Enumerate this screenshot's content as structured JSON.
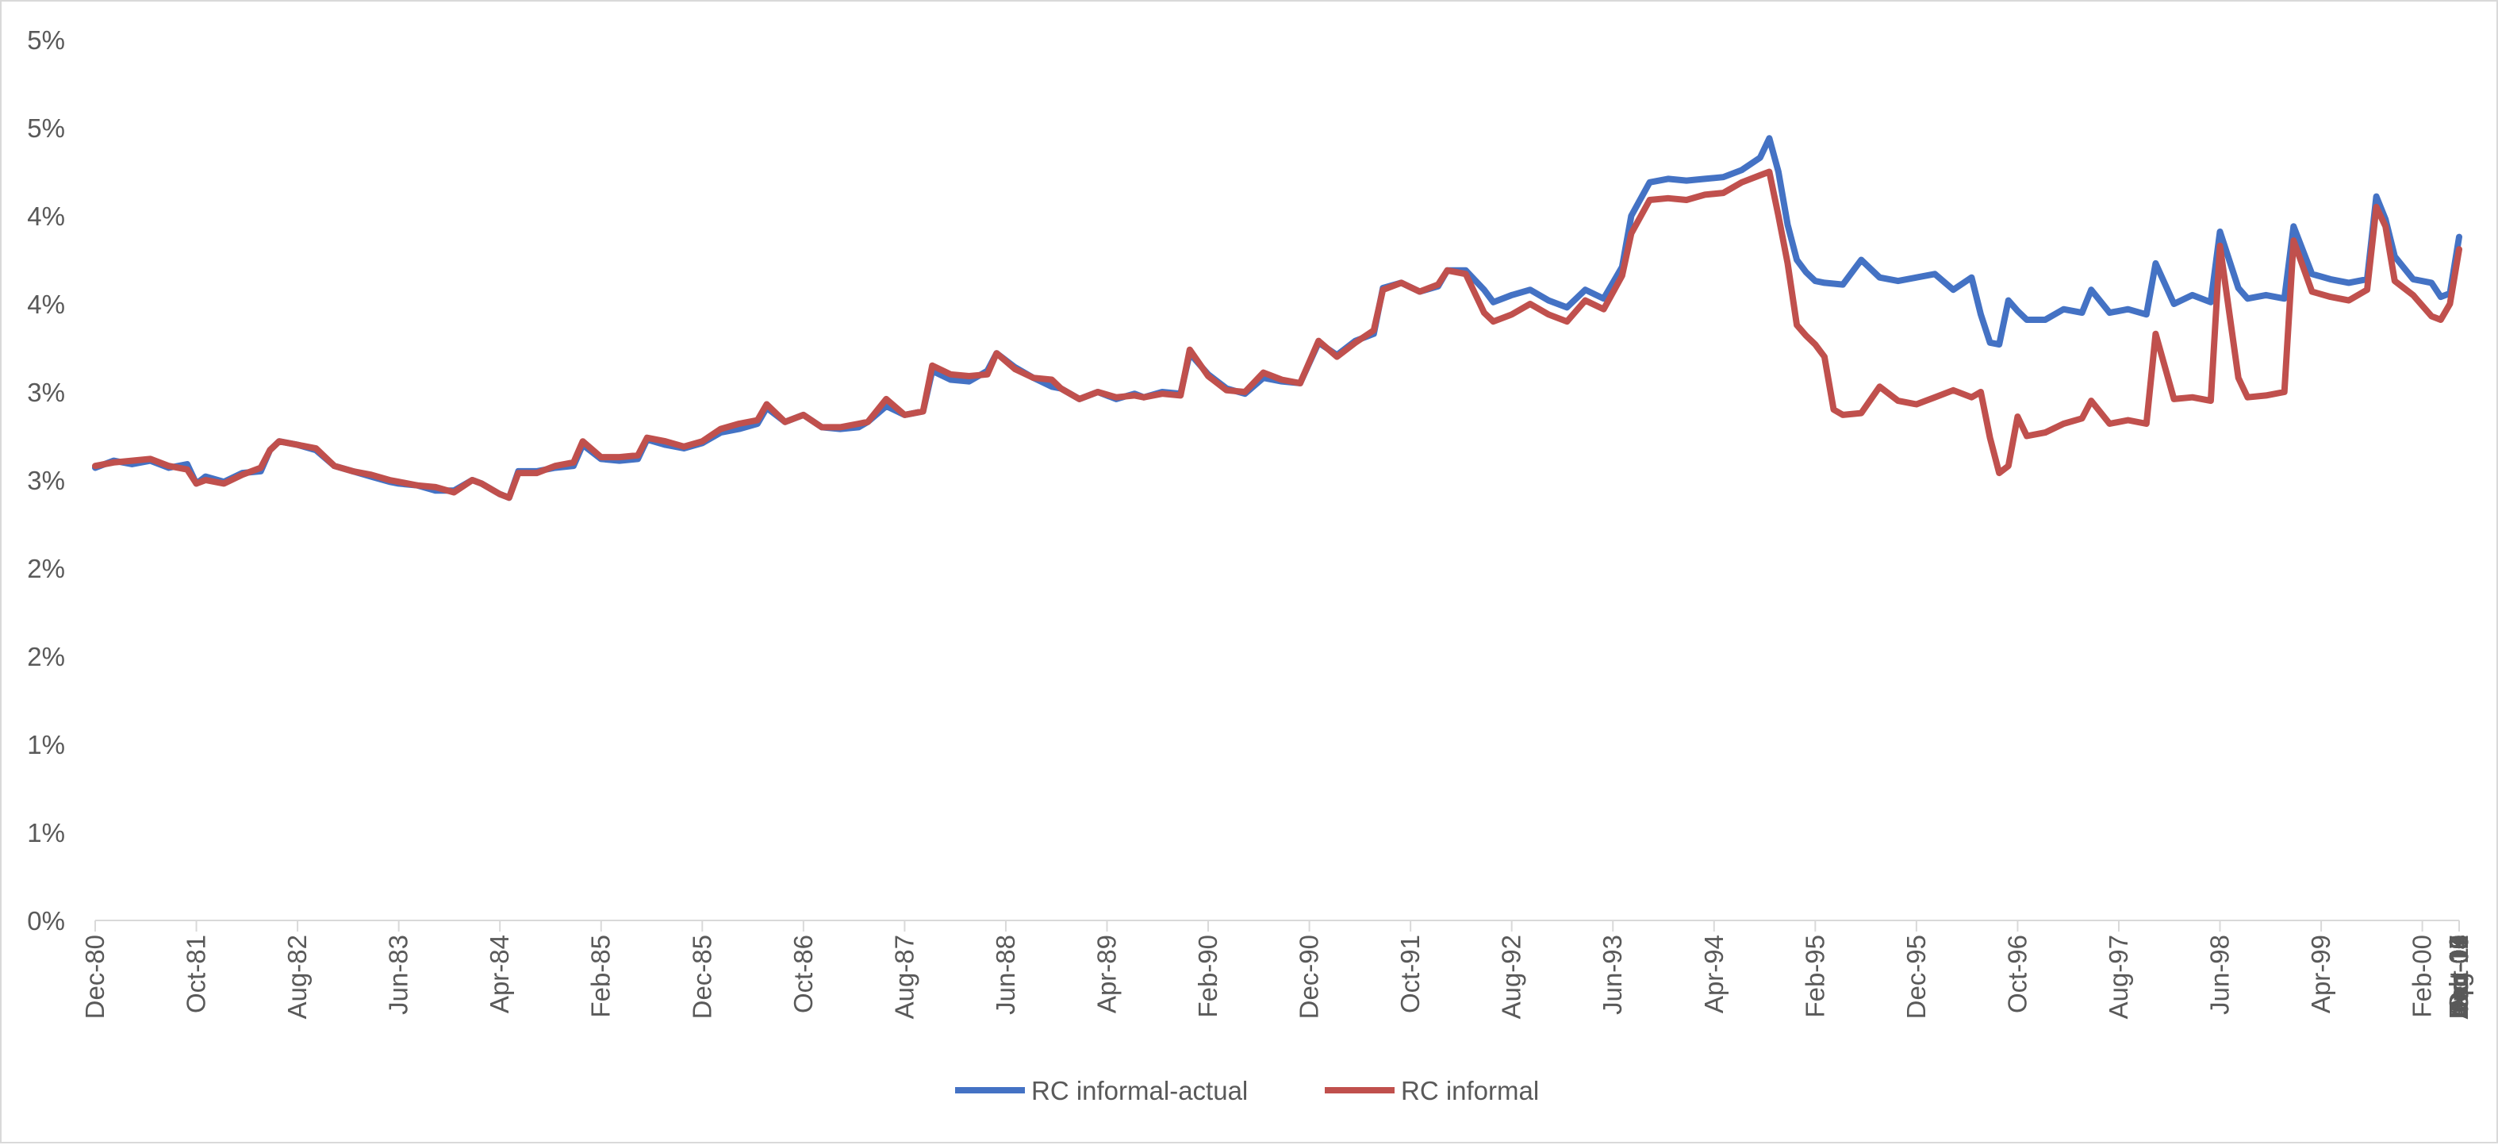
{
  "chart_data": {
    "type": "line",
    "title": "",
    "xlabel": "",
    "ylabel": "",
    "ylim": [
      0,
      5
    ],
    "y_tick_labels": [
      "0%",
      "1%",
      "1%",
      "2%",
      "2%",
      "3%",
      "3%",
      "4%",
      "4%",
      "5%",
      "5%"
    ],
    "x_tick_labels": [
      "Dec-80",
      "Oct-81",
      "Aug-82",
      "Jun-83",
      "Apr-84",
      "Feb-85",
      "Dec-85",
      "Oct-86",
      "Aug-87",
      "Jun-88",
      "Apr-89",
      "Feb-90",
      "Dec-90",
      "Oct-91",
      "Aug-92",
      "Jun-93",
      "Apr-94",
      "Feb-95",
      "Dec-95",
      "Oct-96",
      "Aug-97",
      "Jun-98",
      "Apr-99",
      "Feb-00",
      "Dec-00",
      "Oct-01",
      "Aug-02",
      "Jun-03",
      "Apr-04",
      "Feb-05",
      "Dec-05",
      "Oct-06",
      "Aug-07",
      "Jun-08",
      "Apr-09",
      "Feb-10",
      "Dec-10",
      "Oct-11",
      "Aug-12",
      "Jun-13",
      "Apr-14",
      "Feb-15",
      "Dec-15"
    ],
    "x_start": "Dec-80",
    "x_end": "Dec-15",
    "grid": false,
    "legend_position": "bottom",
    "series": [
      {
        "name": "RC informal-actual",
        "color": "#4472C4",
        "points": [
          [
            0,
            2.57
          ],
          [
            4,
            2.61
          ],
          [
            8,
            2.59
          ],
          [
            12,
            2.61
          ],
          [
            16,
            2.57
          ],
          [
            20,
            2.59
          ],
          [
            22,
            2.48
          ],
          [
            24,
            2.52
          ],
          [
            28,
            2.49
          ],
          [
            32,
            2.54
          ],
          [
            36,
            2.55
          ],
          [
            38,
            2.67
          ],
          [
            40,
            2.72
          ],
          [
            44,
            2.7
          ],
          [
            48,
            2.67
          ],
          [
            52,
            2.58
          ],
          [
            56,
            2.55
          ],
          [
            60,
            2.52
          ],
          [
            64,
            2.49
          ],
          [
            66,
            2.48
          ],
          [
            70,
            2.47
          ],
          [
            74,
            2.44
          ],
          [
            78,
            2.44
          ],
          [
            82,
            2.5
          ],
          [
            84,
            2.48
          ],
          [
            88,
            2.42
          ],
          [
            90,
            2.4
          ],
          [
            92,
            2.55
          ],
          [
            96,
            2.55
          ],
          [
            100,
            2.57
          ],
          [
            104,
            2.58
          ],
          [
            106,
            2.7
          ],
          [
            110,
            2.62
          ],
          [
            114,
            2.61
          ],
          [
            118,
            2.62
          ],
          [
            120,
            2.73
          ],
          [
            124,
            2.7
          ],
          [
            128,
            2.68
          ],
          [
            132,
            2.71
          ],
          [
            136,
            2.77
          ],
          [
            140,
            2.79
          ],
          [
            144,
            2.82
          ],
          [
            146,
            2.91
          ],
          [
            150,
            2.83
          ],
          [
            154,
            2.87
          ],
          [
            158,
            2.8
          ],
          [
            162,
            2.79
          ],
          [
            166,
            2.8
          ],
          [
            168,
            2.83
          ],
          [
            172,
            2.92
          ],
          [
            176,
            2.87
          ],
          [
            180,
            2.89
          ],
          [
            182,
            3.12
          ],
          [
            186,
            3.07
          ],
          [
            190,
            3.06
          ],
          [
            194,
            3.12
          ],
          [
            196,
            3.22
          ],
          [
            200,
            3.14
          ],
          [
            204,
            3.08
          ],
          [
            208,
            3.03
          ],
          [
            210,
            3.02
          ],
          [
            214,
            2.96
          ],
          [
            218,
            3.0
          ],
          [
            222,
            2.96
          ],
          [
            226,
            2.99
          ],
          [
            228,
            2.97
          ],
          [
            232,
            3.0
          ],
          [
            236,
            2.99
          ],
          [
            238,
            3.22
          ],
          [
            242,
            3.1
          ],
          [
            246,
            3.02
          ],
          [
            250,
            2.99
          ],
          [
            254,
            3.08
          ],
          [
            258,
            3.06
          ],
          [
            262,
            3.05
          ],
          [
            266,
            3.28
          ],
          [
            270,
            3.21
          ],
          [
            274,
            3.29
          ],
          [
            278,
            3.33
          ],
          [
            280,
            3.59
          ],
          [
            284,
            3.62
          ],
          [
            288,
            3.57
          ],
          [
            292,
            3.6
          ],
          [
            294,
            3.69
          ],
          [
            298,
            3.69
          ],
          [
            302,
            3.58
          ],
          [
            304,
            3.51
          ],
          [
            308,
            3.55
          ],
          [
            312,
            3.58
          ],
          [
            316,
            3.52
          ],
          [
            320,
            3.48
          ],
          [
            324,
            3.58
          ],
          [
            328,
            3.53
          ],
          [
            332,
            3.71
          ],
          [
            334,
            4.0
          ],
          [
            338,
            4.19
          ],
          [
            342,
            4.21
          ],
          [
            346,
            4.2
          ],
          [
            350,
            4.21
          ],
          [
            354,
            4.22
          ],
          [
            358,
            4.26
          ],
          [
            362,
            4.33
          ],
          [
            364,
            4.44
          ],
          [
            366,
            4.25
          ],
          [
            368,
            3.95
          ],
          [
            370,
            3.75
          ],
          [
            372,
            3.68
          ],
          [
            374,
            3.63
          ],
          [
            376,
            3.62
          ],
          [
            380,
            3.61
          ],
          [
            384,
            3.75
          ],
          [
            388,
            3.65
          ],
          [
            392,
            3.63
          ],
          [
            396,
            3.65
          ],
          [
            400,
            3.67
          ],
          [
            404,
            3.58
          ],
          [
            408,
            3.65
          ],
          [
            410,
            3.44
          ],
          [
            412,
            3.28
          ],
          [
            414,
            3.27
          ],
          [
            416,
            3.52
          ],
          [
            418,
            3.46
          ],
          [
            420,
            3.41
          ],
          [
            424,
            3.41
          ],
          [
            428,
            3.47
          ],
          [
            432,
            3.45
          ],
          [
            434,
            3.58
          ],
          [
            438,
            3.45
          ],
          [
            442,
            3.47
          ],
          [
            446,
            3.44
          ],
          [
            448,
            3.73
          ],
          [
            452,
            3.5
          ],
          [
            456,
            3.55
          ],
          [
            460,
            3.51
          ],
          [
            462,
            3.91
          ],
          [
            466,
            3.59
          ],
          [
            468,
            3.53
          ],
          [
            472,
            3.55
          ],
          [
            476,
            3.53
          ],
          [
            478,
            3.94
          ],
          [
            482,
            3.67
          ],
          [
            486,
            3.64
          ],
          [
            490,
            3.62
          ],
          [
            494,
            3.64
          ],
          [
            496,
            4.11
          ],
          [
            498,
            3.98
          ],
          [
            500,
            3.77
          ],
          [
            504,
            3.64
          ],
          [
            508,
            3.62
          ],
          [
            510,
            3.54
          ],
          [
            512,
            3.56
          ],
          [
            514,
            3.88
          ]
        ]
      },
      {
        "name": "RC informal",
        "color": "#C0504D",
        "points": [
          [
            0,
            2.58
          ],
          [
            4,
            2.6
          ],
          [
            8,
            2.61
          ],
          [
            12,
            2.62
          ],
          [
            16,
            2.58
          ],
          [
            20,
            2.56
          ],
          [
            22,
            2.48
          ],
          [
            24,
            2.5
          ],
          [
            28,
            2.48
          ],
          [
            32,
            2.53
          ],
          [
            36,
            2.57
          ],
          [
            38,
            2.67
          ],
          [
            40,
            2.72
          ],
          [
            44,
            2.7
          ],
          [
            48,
            2.68
          ],
          [
            52,
            2.58
          ],
          [
            56,
            2.55
          ],
          [
            60,
            2.53
          ],
          [
            64,
            2.5
          ],
          [
            66,
            2.49
          ],
          [
            70,
            2.47
          ],
          [
            74,
            2.46
          ],
          [
            78,
            2.43
          ],
          [
            82,
            2.5
          ],
          [
            84,
            2.48
          ],
          [
            88,
            2.42
          ],
          [
            90,
            2.4
          ],
          [
            92,
            2.54
          ],
          [
            96,
            2.54
          ],
          [
            100,
            2.58
          ],
          [
            104,
            2.6
          ],
          [
            106,
            2.72
          ],
          [
            110,
            2.63
          ],
          [
            114,
            2.63
          ],
          [
            118,
            2.64
          ],
          [
            120,
            2.74
          ],
          [
            124,
            2.72
          ],
          [
            128,
            2.69
          ],
          [
            132,
            2.72
          ],
          [
            136,
            2.79
          ],
          [
            140,
            2.82
          ],
          [
            144,
            2.84
          ],
          [
            146,
            2.93
          ],
          [
            150,
            2.83
          ],
          [
            154,
            2.87
          ],
          [
            158,
            2.8
          ],
          [
            162,
            2.8
          ],
          [
            166,
            2.82
          ],
          [
            168,
            2.83
          ],
          [
            172,
            2.96
          ],
          [
            176,
            2.87
          ],
          [
            180,
            2.89
          ],
          [
            182,
            3.15
          ],
          [
            186,
            3.1
          ],
          [
            190,
            3.09
          ],
          [
            194,
            3.1
          ],
          [
            196,
            3.22
          ],
          [
            200,
            3.13
          ],
          [
            204,
            3.08
          ],
          [
            208,
            3.07
          ],
          [
            210,
            3.02
          ],
          [
            214,
            2.96
          ],
          [
            218,
            3.0
          ],
          [
            222,
            2.97
          ],
          [
            226,
            2.98
          ],
          [
            228,
            2.97
          ],
          [
            232,
            2.99
          ],
          [
            236,
            2.98
          ],
          [
            238,
            3.24
          ],
          [
            242,
            3.09
          ],
          [
            246,
            3.01
          ],
          [
            250,
            3.0
          ],
          [
            254,
            3.11
          ],
          [
            258,
            3.07
          ],
          [
            262,
            3.05
          ],
          [
            266,
            3.29
          ],
          [
            270,
            3.2
          ],
          [
            274,
            3.28
          ],
          [
            278,
            3.35
          ],
          [
            280,
            3.58
          ],
          [
            284,
            3.62
          ],
          [
            288,
            3.57
          ],
          [
            292,
            3.61
          ],
          [
            294,
            3.69
          ],
          [
            298,
            3.67
          ],
          [
            302,
            3.45
          ],
          [
            304,
            3.4
          ],
          [
            308,
            3.44
          ],
          [
            312,
            3.5
          ],
          [
            316,
            3.44
          ],
          [
            320,
            3.4
          ],
          [
            324,
            3.52
          ],
          [
            328,
            3.47
          ],
          [
            332,
            3.66
          ],
          [
            334,
            3.9
          ],
          [
            338,
            4.09
          ],
          [
            342,
            4.1
          ],
          [
            346,
            4.09
          ],
          [
            350,
            4.12
          ],
          [
            354,
            4.13
          ],
          [
            358,
            4.19
          ],
          [
            362,
            4.23
          ],
          [
            364,
            4.25
          ],
          [
            366,
            4.0
          ],
          [
            368,
            3.73
          ],
          [
            370,
            3.38
          ],
          [
            372,
            3.32
          ],
          [
            374,
            3.27
          ],
          [
            376,
            3.2
          ],
          [
            378,
            2.9
          ],
          [
            380,
            2.87
          ],
          [
            384,
            2.88
          ],
          [
            388,
            3.03
          ],
          [
            392,
            2.95
          ],
          [
            396,
            2.93
          ],
          [
            400,
            2.97
          ],
          [
            404,
            3.01
          ],
          [
            408,
            2.97
          ],
          [
            410,
            3.0
          ],
          [
            412,
            2.74
          ],
          [
            414,
            2.54
          ],
          [
            416,
            2.58
          ],
          [
            418,
            2.86
          ],
          [
            420,
            2.75
          ],
          [
            424,
            2.77
          ],
          [
            428,
            2.82
          ],
          [
            432,
            2.85
          ],
          [
            434,
            2.95
          ],
          [
            438,
            2.82
          ],
          [
            442,
            2.84
          ],
          [
            446,
            2.82
          ],
          [
            448,
            3.33
          ],
          [
            452,
            2.96
          ],
          [
            456,
            2.97
          ],
          [
            460,
            2.95
          ],
          [
            462,
            3.83
          ],
          [
            466,
            3.08
          ],
          [
            468,
            2.97
          ],
          [
            472,
            2.98
          ],
          [
            476,
            3.0
          ],
          [
            478,
            3.86
          ],
          [
            482,
            3.57
          ],
          [
            486,
            3.54
          ],
          [
            490,
            3.52
          ],
          [
            494,
            3.58
          ],
          [
            496,
            4.05
          ],
          [
            498,
            3.94
          ],
          [
            500,
            3.63
          ],
          [
            504,
            3.55
          ],
          [
            508,
            3.43
          ],
          [
            510,
            3.41
          ],
          [
            512,
            3.5
          ],
          [
            514,
            3.81
          ]
        ]
      }
    ]
  }
}
